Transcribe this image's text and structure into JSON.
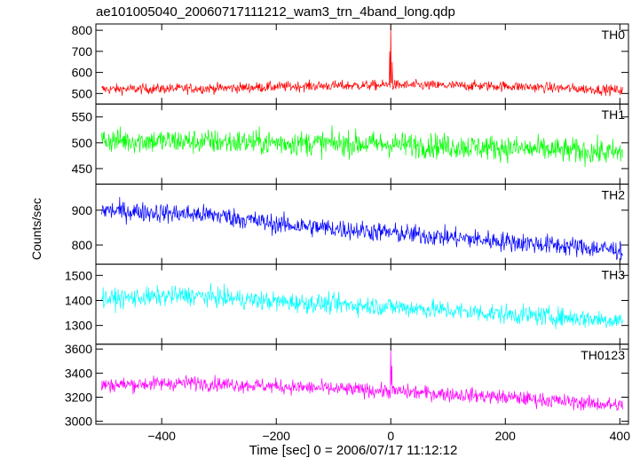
{
  "chart_data": {
    "type": "line",
    "title": "ae101005040_20060717111212_wam3_trn_4band_long.qdp",
    "xlabel": "Time [sec] 0 = 2006/07/17 11:12:12",
    "ylabel": "Counts/sec",
    "xlim": [
      -515,
      415
    ],
    "x_ticks": [
      -400,
      -200,
      0,
      200,
      400
    ],
    "x_range": [
      -505,
      405
    ],
    "grid": false,
    "panels": [
      {
        "name": "TH0",
        "color": "#ff0000",
        "ylim": [
          450,
          830
        ],
        "y_ticks": [
          500,
          600,
          700,
          800
        ],
        "trend": [
          [
            -505,
            520
          ],
          [
            -300,
            525
          ],
          [
            -150,
            535
          ],
          [
            0,
            540
          ],
          [
            200,
            535
          ],
          [
            405,
            515
          ]
        ],
        "noise": 24,
        "spikes": [
          {
            "x": 0,
            "y": 830
          },
          {
            "x": -2,
            "y": 700
          },
          {
            "x": 3,
            "y": 650
          }
        ]
      },
      {
        "name": "TH1",
        "color": "#00ff00",
        "ylim": [
          420,
          575
        ],
        "y_ticks": [
          450,
          500,
          550
        ],
        "trend": [
          [
            -505,
            505
          ],
          [
            -200,
            500
          ],
          [
            0,
            497
          ],
          [
            200,
            490
          ],
          [
            405,
            480
          ]
        ],
        "noise": 24,
        "spikes": []
      },
      {
        "name": "TH2",
        "color": "#0000ff",
        "ylim": [
          745,
          975
        ],
        "y_ticks": [
          800,
          900
        ],
        "trend": [
          [
            -505,
            900
          ],
          [
            -300,
            885
          ],
          [
            -200,
            860
          ],
          [
            0,
            835
          ],
          [
            200,
            810
          ],
          [
            405,
            785
          ]
        ],
        "noise": 28,
        "spikes": []
      },
      {
        "name": "TH3",
        "color": "#00ffff",
        "ylim": [
          1225,
          1545
        ],
        "y_ticks": [
          1300,
          1400,
          1500
        ],
        "trend": [
          [
            -505,
            1405
          ],
          [
            -350,
            1420
          ],
          [
            -200,
            1395
          ],
          [
            0,
            1375
          ],
          [
            200,
            1345
          ],
          [
            405,
            1320
          ]
        ],
        "noise": 38,
        "spikes": []
      },
      {
        "name": "TH0123",
        "color": "#ff00ff",
        "ylim": [
          2975,
          3640
        ],
        "y_ticks": [
          3000,
          3200,
          3400,
          3600
        ],
        "trend": [
          [
            -505,
            3300
          ],
          [
            -350,
            3320
          ],
          [
            -200,
            3290
          ],
          [
            0,
            3250
          ],
          [
            200,
            3200
          ],
          [
            405,
            3130
          ]
        ],
        "noise": 60,
        "spikes": [
          {
            "x": 0,
            "y": 3610
          },
          {
            "x": 2,
            "y": 3460
          }
        ]
      }
    ]
  }
}
